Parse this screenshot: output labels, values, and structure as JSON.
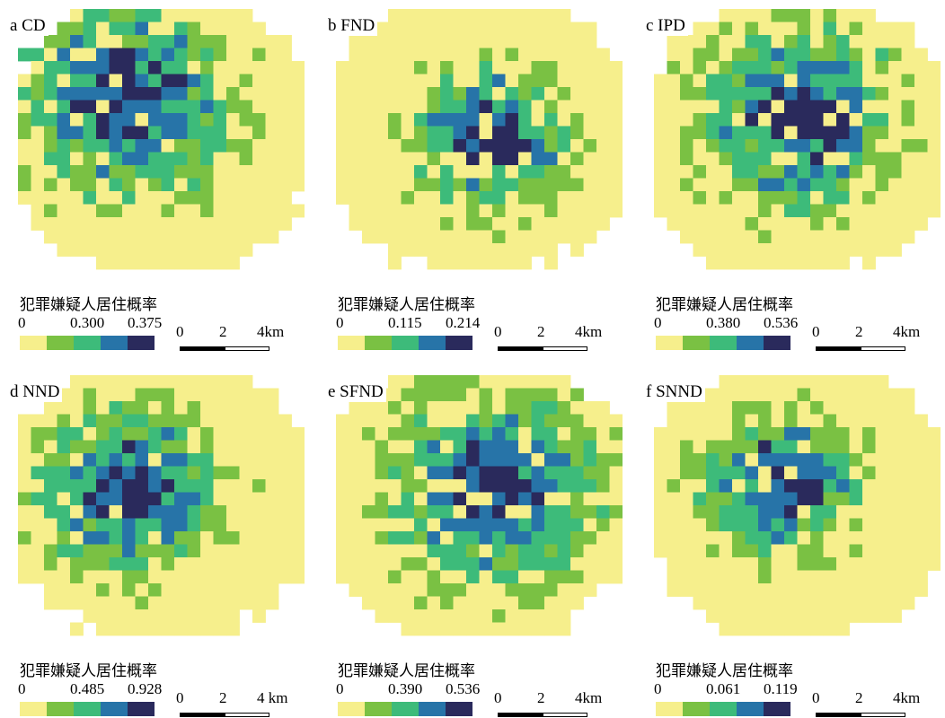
{
  "colors": [
    "#f6ef8c",
    "#7ac143",
    "#3dbb7a",
    "#2774a8",
    "#2a2a5c"
  ],
  "legend_title": "犯罪嫌疑人居住概率",
  "scale": {
    "labels": [
      "0",
      "2",
      "4km"
    ]
  },
  "panels": [
    {
      "id": "a",
      "label": "a  CD",
      "ticks": [
        "0",
        "0.300",
        "0.375"
      ],
      "scale_labels": [
        "0",
        "2",
        "4km"
      ],
      "center": [
        0.38,
        0.35
      ],
      "spread": 1.05,
      "seed": 11
    },
    {
      "id": "b",
      "label": "b  FND",
      "ticks": [
        "0",
        "0.115",
        "0.214"
      ],
      "scale_labels": [
        "0",
        "2",
        "4km"
      ],
      "center": [
        0.55,
        0.5
      ],
      "spread": 1.45,
      "seed": 23
    },
    {
      "id": "c",
      "label": "c  IPD",
      "ticks": [
        "0",
        "0.380",
        "0.536"
      ],
      "scale_labels": [
        "0",
        "2",
        "4km"
      ],
      "center": [
        0.5,
        0.42
      ],
      "spread": 1.15,
      "seed": 37
    },
    {
      "id": "d",
      "label": "d  NND",
      "ticks": [
        "0",
        "0.485",
        "0.928"
      ],
      "scale_labels": [
        "0",
        "2",
        "4 km"
      ],
      "center": [
        0.4,
        0.45
      ],
      "spread": 1.25,
      "seed": 41
    },
    {
      "id": "e",
      "label": "e  SFND",
      "ticks": [
        "0",
        "0.390",
        "0.536"
      ],
      "scale_labels": [
        "0",
        "2",
        "4km"
      ],
      "center": [
        0.55,
        0.45
      ],
      "spread": 1.1,
      "seed": 53
    },
    {
      "id": "f",
      "label": "f  SNND",
      "ticks": [
        "0",
        "0.061",
        "0.119"
      ],
      "scale_labels": [
        "0",
        "2",
        "4km"
      ],
      "center": [
        0.45,
        0.42
      ],
      "spread": 1.45,
      "seed": 67
    }
  ]
}
